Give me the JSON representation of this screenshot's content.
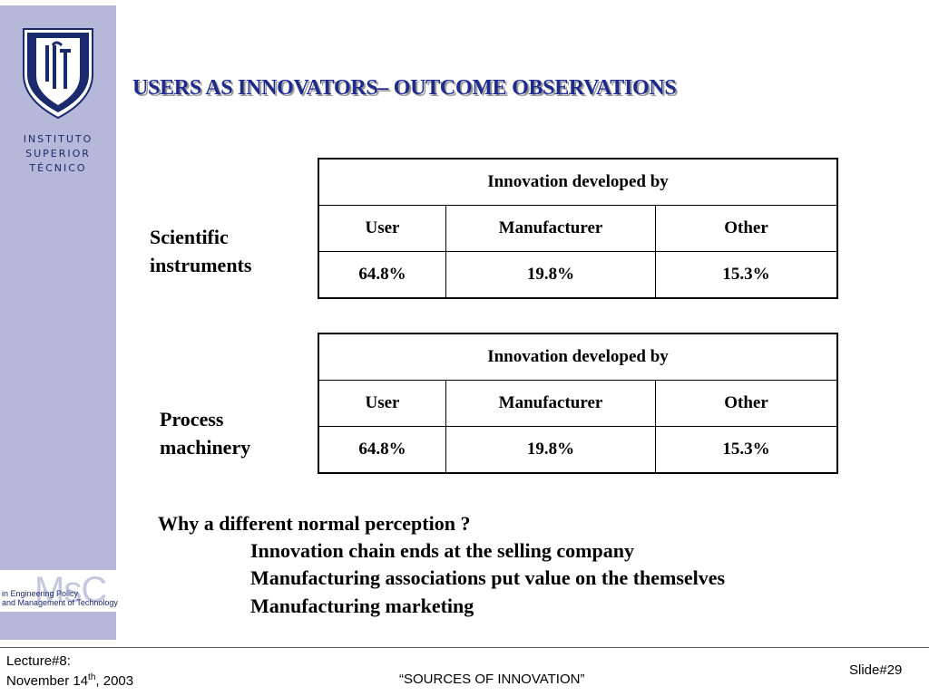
{
  "logo": {
    "institute_lines": [
      "INSTITUTO",
      "SUPERIOR",
      "TÉCNICO"
    ],
    "msc_text": "MsC",
    "msc_subtitle_lines": [
      "in Engineering Policy",
      "and Management of Technology"
    ],
    "colors": {
      "sidebar": "#b5b8d9",
      "shield": "#1a2a6c"
    }
  },
  "slide": {
    "title": "USERS AS INNOVATORS– OUTCOME OBSERVATIONS",
    "title_color": "#1e2b8c",
    "tables": [
      {
        "label_lines": [
          "Scientific",
          "instruments"
        ],
        "header": "Innovation developed by",
        "columns": [
          "User",
          "Manufacturer",
          "Other"
        ],
        "values": [
          "64.8%",
          "19.8%",
          "15.3%"
        ]
      },
      {
        "label_lines": [
          "Process",
          "machinery"
        ],
        "header": "Innovation developed by",
        "columns": [
          "User",
          "Manufacturer",
          "Other"
        ],
        "values": [
          "64.8%",
          "19.8%",
          "15.3%"
        ]
      }
    ],
    "question": "Why a different normal perception ?",
    "points": [
      "Innovation chain ends at the selling company",
      "Manufacturing associations put value on the themselves",
      "Manufacturing marketing"
    ]
  },
  "footer": {
    "lecture": "Lecture#8:",
    "date_prefix": "November 14",
    "date_sup": "th",
    "date_suffix": ", 2003",
    "center": "“SOURCES OF INNOVATION”",
    "slide_number": "Slide#29"
  }
}
